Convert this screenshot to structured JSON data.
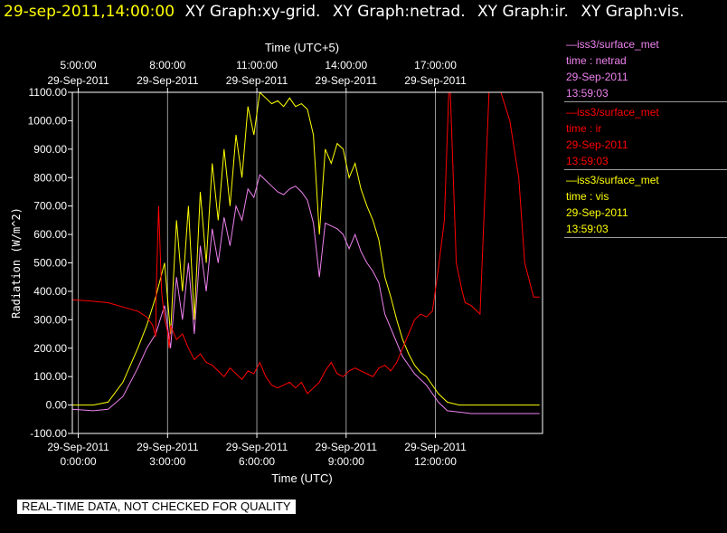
{
  "header": {
    "timestamp": "29-sep-2011,14:00:00",
    "graph_titles": [
      "XY Graph:xy-grid.",
      "XY Graph:netrad.",
      "XY Graph:ir.",
      "XY Graph:vis."
    ]
  },
  "legend": [
    {
      "source": "—iss3/surface_met",
      "field": "time : netrad",
      "date": "29-Sep-2011",
      "time": "13:59:03",
      "color": "#ee82ee"
    },
    {
      "source": "—iss3/surface_met",
      "field": "time : ir",
      "date": "29-Sep-2011",
      "time": "13:59:03",
      "color": "#ff0000"
    },
    {
      "source": "—iss3/surface_met",
      "field": "time : vis",
      "date": "29-Sep-2011",
      "time": "13:59:03",
      "color": "#ffff00"
    }
  ],
  "disclaimer": "REAL-TIME DATA, NOT CHECKED FOR QUALITY",
  "chart_data": {
    "type": "line",
    "ylabel": "Radiation (W/m^2)",
    "xlabel": "Time (UTC)",
    "top_xlabel": "Time (UTC+5)",
    "ylim": [
      -100,
      1100
    ],
    "xlim": [
      -0.2,
      15.6
    ],
    "y_ticks": [
      "1100.00",
      "1000.00",
      "900.00",
      "800.00",
      "700.00",
      "600.00",
      "500.00",
      "400.00",
      "300.00",
      "200.00",
      "100.00",
      "0.00",
      "-100.00"
    ],
    "y_tick_values": [
      1100,
      1000,
      900,
      800,
      700,
      600,
      500,
      400,
      300,
      200,
      100,
      0,
      -100
    ],
    "x_ticks_bottom": [
      {
        "x": 0,
        "date": "29-Sep-2011",
        "time": "0:00:00"
      },
      {
        "x": 3,
        "date": "29-Sep-2011",
        "time": "3:00:00"
      },
      {
        "x": 6,
        "date": "29-Sep-2011",
        "time": "6:00:00"
      },
      {
        "x": 9,
        "date": "29-Sep-2011",
        "time": "9:00:00"
      },
      {
        "x": 12,
        "date": "29-Sep-2011",
        "time": "12:00:00"
      }
    ],
    "x_ticks_top": [
      {
        "x": 0,
        "time": "5:00:00",
        "date": "29-Sep-2011"
      },
      {
        "x": 3,
        "time": "8:00:00",
        "date": "29-Sep-2011"
      },
      {
        "x": 6,
        "time": "11:00:00",
        "date": "29-Sep-2011"
      },
      {
        "x": 9,
        "time": "14:00:00",
        "date": "29-Sep-2011"
      },
      {
        "x": 12,
        "time": "17:00:00",
        "date": "29-Sep-2011"
      }
    ],
    "grid": true,
    "series": [
      {
        "name": "time : vis",
        "color": "#ffff00",
        "x": [
          -0.2,
          0.5,
          1.0,
          1.5,
          2.0,
          2.3,
          2.6,
          2.9,
          3.1,
          3.3,
          3.5,
          3.7,
          3.9,
          4.1,
          4.3,
          4.5,
          4.7,
          4.9,
          5.1,
          5.3,
          5.5,
          5.7,
          5.9,
          6.1,
          6.3,
          6.5,
          6.7,
          6.9,
          7.1,
          7.3,
          7.5,
          7.7,
          7.9,
          8.1,
          8.3,
          8.5,
          8.7,
          8.9,
          9.1,
          9.3,
          9.5,
          9.7,
          9.9,
          10.1,
          10.3,
          10.5,
          10.7,
          10.9,
          11.1,
          11.3,
          11.5,
          11.7,
          11.9,
          12.1,
          12.4,
          12.8,
          13.2,
          13.6,
          14.0,
          14.5,
          15.0,
          15.5
        ],
        "y": [
          0,
          0,
          10,
          80,
          200,
          280,
          380,
          500,
          250,
          650,
          400,
          700,
          300,
          750,
          500,
          850,
          650,
          900,
          700,
          950,
          800,
          1050,
          950,
          1100,
          1080,
          1060,
          1070,
          1050,
          1080,
          1050,
          1060,
          1040,
          950,
          600,
          900,
          850,
          920,
          900,
          800,
          850,
          760,
          700,
          650,
          580,
          450,
          380,
          300,
          230,
          180,
          140,
          115,
          100,
          70,
          40,
          10,
          0,
          0,
          0,
          0,
          0,
          0,
          0
        ]
      },
      {
        "name": "time : netrad",
        "color": "#ee82ee",
        "x": [
          -0.2,
          0.5,
          1.0,
          1.5,
          2.0,
          2.3,
          2.6,
          2.9,
          3.1,
          3.3,
          3.5,
          3.7,
          3.9,
          4.1,
          4.3,
          4.5,
          4.7,
          4.9,
          5.1,
          5.3,
          5.5,
          5.7,
          5.9,
          6.1,
          6.3,
          6.5,
          6.7,
          6.9,
          7.1,
          7.3,
          7.5,
          7.7,
          7.9,
          8.1,
          8.3,
          8.5,
          8.7,
          8.9,
          9.1,
          9.3,
          9.5,
          9.7,
          9.9,
          10.1,
          10.3,
          10.5,
          10.7,
          10.9,
          11.1,
          11.3,
          11.5,
          11.7,
          11.9,
          12.1,
          12.4,
          12.8,
          13.2,
          13.6,
          14.0,
          14.5,
          15.0,
          15.5
        ],
        "y": [
          -15,
          -20,
          -15,
          30,
          130,
          200,
          250,
          350,
          200,
          450,
          300,
          500,
          250,
          560,
          400,
          620,
          500,
          660,
          560,
          700,
          650,
          760,
          730,
          810,
          790,
          770,
          750,
          740,
          760,
          770,
          750,
          720,
          640,
          450,
          640,
          630,
          620,
          600,
          550,
          600,
          540,
          500,
          470,
          430,
          320,
          270,
          220,
          170,
          140,
          110,
          90,
          70,
          40,
          10,
          -20,
          -25,
          -30,
          -30,
          -30,
          -30,
          -30,
          -30
        ]
      },
      {
        "name": "time : ir",
        "color": "#ff0000",
        "x": [
          -0.2,
          0.5,
          1.0,
          1.5,
          2.0,
          2.3,
          2.5,
          2.6,
          2.62,
          2.7,
          2.8,
          2.9,
          3.0,
          3.05,
          3.1,
          3.3,
          3.5,
          3.7,
          3.9,
          4.1,
          4.3,
          4.5,
          4.7,
          4.9,
          5.1,
          5.3,
          5.5,
          5.7,
          5.9,
          6.1,
          6.3,
          6.5,
          6.7,
          6.9,
          7.1,
          7.3,
          7.5,
          7.7,
          7.9,
          8.1,
          8.3,
          8.5,
          8.7,
          8.9,
          9.1,
          9.3,
          9.5,
          9.7,
          9.9,
          10.1,
          10.3,
          10.5,
          10.7,
          10.9,
          11.1,
          11.3,
          11.5,
          11.7,
          11.9,
          12.1,
          12.3,
          12.45,
          12.5,
          12.7,
          12.9,
          13.0,
          13.2,
          13.5,
          13.8,
          14.0,
          14.2,
          14.5,
          14.8,
          15.0,
          15.3,
          15.5
        ],
        "y": [
          370,
          365,
          360,
          345,
          330,
          310,
          280,
          240,
          400,
          700,
          400,
          300,
          260,
          200,
          280,
          230,
          250,
          200,
          160,
          180,
          150,
          140,
          120,
          100,
          130,
          110,
          90,
          120,
          110,
          150,
          100,
          70,
          60,
          70,
          80,
          60,
          80,
          40,
          60,
          80,
          120,
          150,
          110,
          100,
          120,
          130,
          120,
          110,
          100,
          130,
          140,
          120,
          150,
          200,
          250,
          300,
          320,
          310,
          330,
          480,
          650,
          1100,
          1100,
          500,
          400,
          360,
          350,
          320,
          1100,
          1100,
          1100,
          1000,
          800,
          500,
          380,
          380
        ]
      }
    ]
  }
}
